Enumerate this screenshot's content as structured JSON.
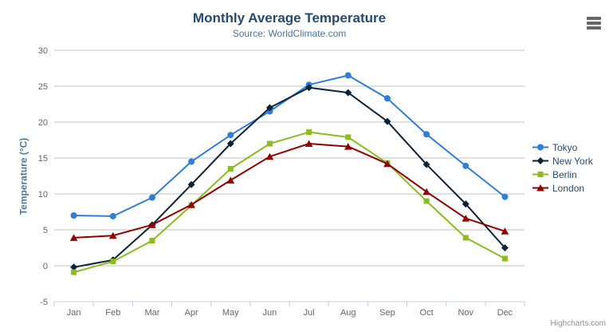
{
  "credits": {
    "label": "Highcharts.com"
  },
  "colors": {
    "title": "#274b6d",
    "subtitle": "#4d759e",
    "axis_label": "#666666",
    "grid_line": "#c0c0c0",
    "axis_line": "#c0d0e0",
    "legend_text": "#274b6d",
    "credits_text": "#909090",
    "export_icon": "#666666"
  },
  "chart_data": {
    "type": "line",
    "title": "Monthly Average Temperature",
    "subtitle": "Source: WorldClimate.com",
    "categories": [
      "Jan",
      "Feb",
      "Mar",
      "Apr",
      "May",
      "Jun",
      "Jul",
      "Aug",
      "Sep",
      "Oct",
      "Nov",
      "Dec"
    ],
    "series": [
      {
        "name": "Tokyo",
        "color": "#2f7ed8",
        "marker": "circle",
        "values": [
          7.0,
          6.9,
          9.5,
          14.5,
          18.2,
          21.5,
          25.2,
          26.5,
          23.3,
          18.3,
          13.9,
          9.6
        ]
      },
      {
        "name": "New York",
        "color": "#0d233a",
        "marker": "diamond",
        "values": [
          -0.2,
          0.8,
          5.7,
          11.3,
          17.0,
          22.0,
          24.8,
          24.1,
          20.1,
          14.1,
          8.6,
          2.5
        ]
      },
      {
        "name": "Berlin",
        "color": "#8bbc21",
        "marker": "square",
        "values": [
          -0.9,
          0.6,
          3.5,
          8.4,
          13.5,
          17.0,
          18.6,
          17.9,
          14.3,
          9.0,
          3.9,
          1.0
        ]
      },
      {
        "name": "London",
        "color": "#910000",
        "marker": "triangle",
        "values": [
          3.9,
          4.2,
          5.7,
          8.5,
          11.9,
          15.2,
          17.0,
          16.6,
          14.2,
          10.3,
          6.6,
          4.8
        ]
      }
    ],
    "xlabel": "",
    "ylabel": "Temperature (°C)",
    "ylim": [
      -5,
      30
    ],
    "ytick_step": 5,
    "grid": true,
    "legend_position": "right-middle"
  }
}
